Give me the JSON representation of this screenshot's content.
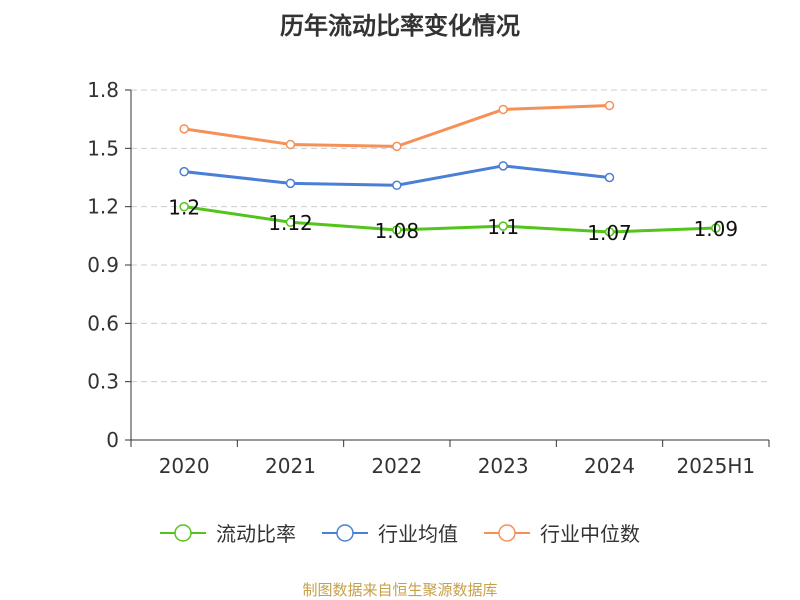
{
  "chart_data": {
    "type": "line",
    "title": "历年流动比率变化情况",
    "categories": [
      "2020",
      "2021",
      "2022",
      "2023",
      "2024",
      "2025H1"
    ],
    "ylim": [
      0,
      1.8
    ],
    "yticks": [
      "0",
      "0.3",
      "0.6",
      "0.9",
      "1.2",
      "1.5",
      "1.8"
    ],
    "grid": true,
    "legend_position": "bottom",
    "series": [
      {
        "name": "流动比率",
        "color": "#52c41a",
        "values": [
          1.2,
          1.12,
          1.08,
          1.1,
          1.07,
          1.09
        ],
        "data_labels": [
          "1.2",
          "1.12",
          "1.08",
          "1.1",
          "1.07",
          "1.09"
        ]
      },
      {
        "name": "行业均值",
        "color": "#4a7fd6",
        "values": [
          1.38,
          1.32,
          1.31,
          1.41,
          1.35,
          null
        ]
      },
      {
        "name": "行业中位数",
        "color": "#f59158",
        "values": [
          1.6,
          1.52,
          1.51,
          1.7,
          1.72,
          null
        ]
      }
    ],
    "source": "制图数据来自恒生聚源数据库"
  }
}
